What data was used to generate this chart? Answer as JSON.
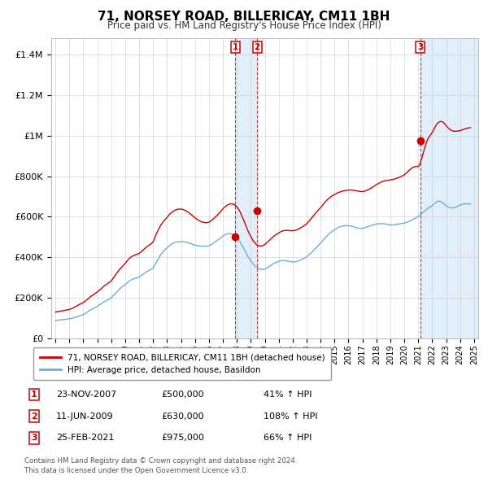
{
  "title": "71, NORSEY ROAD, BILLERICAY, CM11 1BH",
  "subtitle": "Price paid vs. HM Land Registry's House Price Index (HPI)",
  "ylabel_ticks": [
    "£0",
    "£200K",
    "£400K",
    "£600K",
    "£800K",
    "£1M",
    "£1.2M",
    "£1.4M"
  ],
  "ytick_values": [
    0,
    200000,
    400000,
    600000,
    800000,
    1000000,
    1200000,
    1400000
  ],
  "ylim": [
    0,
    1480000
  ],
  "xlim_start": 1994.7,
  "xlim_end": 2025.3,
  "sale_color": "#cc0000",
  "hpi_color": "#6baed6",
  "shade_color": "#d0e4f5",
  "legend_sale_label": "71, NORSEY ROAD, BILLERICAY, CM11 1BH (detached house)",
  "legend_hpi_label": "HPI: Average price, detached house, Basildon",
  "sales": [
    {
      "num": 1,
      "date_label": "23-NOV-2007",
      "x": 2007.9,
      "price": 500000,
      "pct": "41%",
      "arrow": "↑"
    },
    {
      "num": 2,
      "date_label": "11-JUN-2009",
      "x": 2009.45,
      "price": 630000,
      "pct": "108%",
      "arrow": "↑"
    },
    {
      "num": 3,
      "date_label": "25-FEB-2021",
      "x": 2021.15,
      "price": 975000,
      "pct": "66%",
      "arrow": "↑"
    }
  ],
  "footer_line1": "Contains HM Land Registry data © Crown copyright and database right 2024.",
  "footer_line2": "This data is licensed under the Open Government Licence v3.0.",
  "hpi_x": [
    1995.0,
    1995.083,
    1995.167,
    1995.25,
    1995.333,
    1995.417,
    1995.5,
    1995.583,
    1995.667,
    1995.75,
    1995.833,
    1995.917,
    1996.0,
    1996.083,
    1996.167,
    1996.25,
    1996.333,
    1996.417,
    1996.5,
    1996.583,
    1996.667,
    1996.75,
    1996.833,
    1996.917,
    1997.0,
    1997.083,
    1997.167,
    1997.25,
    1997.333,
    1997.417,
    1997.5,
    1997.583,
    1997.667,
    1997.75,
    1997.833,
    1997.917,
    1998.0,
    1998.083,
    1998.167,
    1998.25,
    1998.333,
    1998.417,
    1998.5,
    1998.583,
    1998.667,
    1998.75,
    1998.833,
    1998.917,
    1999.0,
    1999.083,
    1999.167,
    1999.25,
    1999.333,
    1999.417,
    1999.5,
    1999.583,
    1999.667,
    1999.75,
    1999.833,
    1999.917,
    2000.0,
    2000.083,
    2000.167,
    2000.25,
    2000.333,
    2000.417,
    2000.5,
    2000.583,
    2000.667,
    2000.75,
    2000.833,
    2000.917,
    2001.0,
    2001.083,
    2001.167,
    2001.25,
    2001.333,
    2001.417,
    2001.5,
    2001.583,
    2001.667,
    2001.75,
    2001.833,
    2001.917,
    2002.0,
    2002.083,
    2002.167,
    2002.25,
    2002.333,
    2002.417,
    2002.5,
    2002.583,
    2002.667,
    2002.75,
    2002.833,
    2002.917,
    2003.0,
    2003.083,
    2003.167,
    2003.25,
    2003.333,
    2003.417,
    2003.5,
    2003.583,
    2003.667,
    2003.75,
    2003.833,
    2003.917,
    2004.0,
    2004.083,
    2004.167,
    2004.25,
    2004.333,
    2004.417,
    2004.5,
    2004.583,
    2004.667,
    2004.75,
    2004.833,
    2004.917,
    2005.0,
    2005.083,
    2005.167,
    2005.25,
    2005.333,
    2005.417,
    2005.5,
    2005.583,
    2005.667,
    2005.75,
    2005.833,
    2005.917,
    2006.0,
    2006.083,
    2006.167,
    2006.25,
    2006.333,
    2006.417,
    2006.5,
    2006.583,
    2006.667,
    2006.75,
    2006.833,
    2006.917,
    2007.0,
    2007.083,
    2007.167,
    2007.25,
    2007.333,
    2007.417,
    2007.5,
    2007.583,
    2007.667,
    2007.75,
    2007.833,
    2007.917,
    2008.0,
    2008.083,
    2008.167,
    2008.25,
    2008.333,
    2008.417,
    2008.5,
    2008.583,
    2008.667,
    2008.75,
    2008.833,
    2008.917,
    2009.0,
    2009.083,
    2009.167,
    2009.25,
    2009.333,
    2009.417,
    2009.5,
    2009.583,
    2009.667,
    2009.75,
    2009.833,
    2009.917,
    2010.0,
    2010.083,
    2010.167,
    2010.25,
    2010.333,
    2010.417,
    2010.5,
    2010.583,
    2010.667,
    2010.75,
    2010.833,
    2010.917,
    2011.0,
    2011.083,
    2011.167,
    2011.25,
    2011.333,
    2011.417,
    2011.5,
    2011.583,
    2011.667,
    2011.75,
    2011.833,
    2011.917,
    2012.0,
    2012.083,
    2012.167,
    2012.25,
    2012.333,
    2012.417,
    2012.5,
    2012.583,
    2012.667,
    2012.75,
    2012.833,
    2012.917,
    2013.0,
    2013.083,
    2013.167,
    2013.25,
    2013.333,
    2013.417,
    2013.5,
    2013.583,
    2013.667,
    2013.75,
    2013.833,
    2013.917,
    2014.0,
    2014.083,
    2014.167,
    2014.25,
    2014.333,
    2014.417,
    2014.5,
    2014.583,
    2014.667,
    2014.75,
    2014.833,
    2014.917,
    2015.0,
    2015.083,
    2015.167,
    2015.25,
    2015.333,
    2015.417,
    2015.5,
    2015.583,
    2015.667,
    2015.75,
    2015.833,
    2015.917,
    2016.0,
    2016.083,
    2016.167,
    2016.25,
    2016.333,
    2016.417,
    2016.5,
    2016.583,
    2016.667,
    2016.75,
    2016.833,
    2016.917,
    2017.0,
    2017.083,
    2017.167,
    2017.25,
    2017.333,
    2017.417,
    2017.5,
    2017.583,
    2017.667,
    2017.75,
    2017.833,
    2017.917,
    2018.0,
    2018.083,
    2018.167,
    2018.25,
    2018.333,
    2018.417,
    2018.5,
    2018.583,
    2018.667,
    2018.75,
    2018.833,
    2018.917,
    2019.0,
    2019.083,
    2019.167,
    2019.25,
    2019.333,
    2019.417,
    2019.5,
    2019.583,
    2019.667,
    2019.75,
    2019.833,
    2019.917,
    2020.0,
    2020.083,
    2020.167,
    2020.25,
    2020.333,
    2020.417,
    2020.5,
    2020.583,
    2020.667,
    2020.75,
    2020.833,
    2020.917,
    2021.0,
    2021.083,
    2021.167,
    2021.25,
    2021.333,
    2021.417,
    2021.5,
    2021.583,
    2021.667,
    2021.75,
    2021.833,
    2021.917,
    2022.0,
    2022.083,
    2022.167,
    2022.25,
    2022.333,
    2022.417,
    2022.5,
    2022.583,
    2022.667,
    2022.75,
    2022.833,
    2022.917,
    2023.0,
    2023.083,
    2023.167,
    2023.25,
    2023.333,
    2023.417,
    2023.5,
    2023.583,
    2023.667,
    2023.75,
    2023.833,
    2023.917,
    2024.0,
    2024.083,
    2024.167,
    2024.25,
    2024.333,
    2024.417,
    2024.5,
    2024.583,
    2024.667,
    2024.75
  ],
  "hpi_y": [
    88000,
    89000,
    90000,
    90500,
    91000,
    91500,
    92000,
    93000,
    93500,
    94000,
    95000,
    96000,
    97000,
    98000,
    99000,
    100500,
    102000,
    104000,
    106000,
    108000,
    110000,
    112000,
    114000,
    116000,
    118000,
    121000,
    124000,
    128000,
    132000,
    136000,
    140000,
    143000,
    146000,
    149000,
    152000,
    155000,
    158000,
    162000,
    166000,
    170000,
    174000,
    178000,
    181000,
    184000,
    187000,
    190000,
    193000,
    196000,
    200000,
    206000,
    212000,
    218000,
    224000,
    230000,
    236000,
    242000,
    247000,
    252000,
    257000,
    261000,
    265000,
    270000,
    275000,
    280000,
    285000,
    288000,
    291000,
    293000,
    295000,
    297000,
    299000,
    301000,
    303000,
    307000,
    311000,
    315000,
    319000,
    323000,
    327000,
    331000,
    334000,
    337000,
    340000,
    343000,
    348000,
    358000,
    368000,
    378000,
    388000,
    398000,
    408000,
    416000,
    424000,
    430000,
    436000,
    441000,
    446000,
    452000,
    457000,
    462000,
    466000,
    469000,
    472000,
    474000,
    475000,
    476000,
    477000,
    477000,
    477000,
    477000,
    477000,
    476000,
    475000,
    474000,
    472000,
    470000,
    468000,
    466000,
    464000,
    462000,
    460000,
    459000,
    458000,
    457000,
    456000,
    455000,
    455000,
    455000,
    455000,
    455000,
    455000,
    456000,
    457000,
    460000,
    463000,
    467000,
    471000,
    475000,
    479000,
    483000,
    487000,
    491000,
    495000,
    500000,
    505000,
    509000,
    512000,
    514000,
    516000,
    517000,
    517000,
    516000,
    514000,
    511000,
    507000,
    503000,
    498000,
    491000,
    483000,
    474000,
    464000,
    454000,
    443000,
    432000,
    421000,
    410000,
    400000,
    391000,
    383000,
    375000,
    368000,
    362000,
    356000,
    351000,
    347000,
    344000,
    342000,
    341000,
    340000,
    340000,
    341000,
    344000,
    347000,
    351000,
    355000,
    359000,
    363000,
    367000,
    370000,
    373000,
    376000,
    378000,
    380000,
    382000,
    383000,
    384000,
    384000,
    384000,
    383000,
    382000,
    381000,
    380000,
    379000,
    378000,
    377000,
    377000,
    378000,
    379000,
    381000,
    383000,
    385000,
    387000,
    390000,
    393000,
    396000,
    399000,
    402000,
    407000,
    412000,
    417000,
    422000,
    428000,
    434000,
    440000,
    446000,
    452000,
    458000,
    464000,
    470000,
    477000,
    484000,
    490000,
    496000,
    502000,
    508000,
    514000,
    519000,
    524000,
    528000,
    532000,
    536000,
    540000,
    543000,
    546000,
    549000,
    551000,
    553000,
    554000,
    555000,
    556000,
    556000,
    556000,
    556000,
    555000,
    554000,
    553000,
    552000,
    550000,
    548000,
    546000,
    545000,
    544000,
    543000,
    543000,
    543000,
    544000,
    546000,
    548000,
    550000,
    552000,
    554000,
    556000,
    558000,
    560000,
    562000,
    563000,
    564000,
    565000,
    566000,
    566000,
    566000,
    566000,
    566000,
    565000,
    564000,
    563000,
    562000,
    561000,
    560000,
    560000,
    560000,
    560000,
    561000,
    562000,
    563000,
    564000,
    565000,
    566000,
    567000,
    568000,
    569000,
    571000,
    573000,
    575000,
    577000,
    580000,
    583000,
    586000,
    589000,
    592000,
    595000,
    598000,
    601000,
    606000,
    611000,
    616000,
    621000,
    626000,
    631000,
    636000,
    641000,
    645000,
    648000,
    651000,
    655000,
    660000,
    665000,
    670000,
    674000,
    676000,
    677000,
    676000,
    673000,
    669000,
    664000,
    659000,
    654000,
    650000,
    647000,
    645000,
    644000,
    644000,
    644000,
    645000,
    647000,
    649000,
    652000,
    655000,
    658000,
    660000,
    662000,
    663000,
    664000,
    664000,
    664000,
    663000,
    663000,
    663000
  ],
  "sale_x": [
    1995.0,
    1995.083,
    1995.167,
    1995.25,
    1995.333,
    1995.417,
    1995.5,
    1995.583,
    1995.667,
    1995.75,
    1995.833,
    1995.917,
    1996.0,
    1996.083,
    1996.167,
    1996.25,
    1996.333,
    1996.417,
    1996.5,
    1996.583,
    1996.667,
    1996.75,
    1996.833,
    1996.917,
    1997.0,
    1997.083,
    1997.167,
    1997.25,
    1997.333,
    1997.417,
    1997.5,
    1997.583,
    1997.667,
    1997.75,
    1997.833,
    1997.917,
    1998.0,
    1998.083,
    1998.167,
    1998.25,
    1998.333,
    1998.417,
    1998.5,
    1998.583,
    1998.667,
    1998.75,
    1998.833,
    1998.917,
    1999.0,
    1999.083,
    1999.167,
    1999.25,
    1999.333,
    1999.417,
    1999.5,
    1999.583,
    1999.667,
    1999.75,
    1999.833,
    1999.917,
    2000.0,
    2000.083,
    2000.167,
    2000.25,
    2000.333,
    2000.417,
    2000.5,
    2000.583,
    2000.667,
    2000.75,
    2000.833,
    2000.917,
    2001.0,
    2001.083,
    2001.167,
    2001.25,
    2001.333,
    2001.417,
    2001.5,
    2001.583,
    2001.667,
    2001.75,
    2001.833,
    2001.917,
    2002.0,
    2002.083,
    2002.167,
    2002.25,
    2002.333,
    2002.417,
    2002.5,
    2002.583,
    2002.667,
    2002.75,
    2002.833,
    2002.917,
    2003.0,
    2003.083,
    2003.167,
    2003.25,
    2003.333,
    2003.417,
    2003.5,
    2003.583,
    2003.667,
    2003.75,
    2003.833,
    2003.917,
    2004.0,
    2004.083,
    2004.167,
    2004.25,
    2004.333,
    2004.417,
    2004.5,
    2004.583,
    2004.667,
    2004.75,
    2004.833,
    2004.917,
    2005.0,
    2005.083,
    2005.167,
    2005.25,
    2005.333,
    2005.417,
    2005.5,
    2005.583,
    2005.667,
    2005.75,
    2005.833,
    2005.917,
    2006.0,
    2006.083,
    2006.167,
    2006.25,
    2006.333,
    2006.417,
    2006.5,
    2006.583,
    2006.667,
    2006.75,
    2006.833,
    2006.917,
    2007.0,
    2007.083,
    2007.167,
    2007.25,
    2007.333,
    2007.417,
    2007.5,
    2007.583,
    2007.667,
    2007.75,
    2007.833,
    2007.917,
    2008.0,
    2008.083,
    2008.167,
    2008.25,
    2008.333,
    2008.417,
    2008.5,
    2008.583,
    2008.667,
    2008.75,
    2008.833,
    2008.917,
    2009.0,
    2009.083,
    2009.167,
    2009.25,
    2009.333,
    2009.417,
    2009.5,
    2009.583,
    2009.667,
    2009.75,
    2009.833,
    2009.917,
    2010.0,
    2010.083,
    2010.167,
    2010.25,
    2010.333,
    2010.417,
    2010.5,
    2010.583,
    2010.667,
    2010.75,
    2010.833,
    2010.917,
    2011.0,
    2011.083,
    2011.167,
    2011.25,
    2011.333,
    2011.417,
    2011.5,
    2011.583,
    2011.667,
    2011.75,
    2011.833,
    2011.917,
    2012.0,
    2012.083,
    2012.167,
    2012.25,
    2012.333,
    2012.417,
    2012.5,
    2012.583,
    2012.667,
    2012.75,
    2012.833,
    2012.917,
    2013.0,
    2013.083,
    2013.167,
    2013.25,
    2013.333,
    2013.417,
    2013.5,
    2013.583,
    2013.667,
    2013.75,
    2013.833,
    2013.917,
    2014.0,
    2014.083,
    2014.167,
    2014.25,
    2014.333,
    2014.417,
    2014.5,
    2014.583,
    2014.667,
    2014.75,
    2014.833,
    2014.917,
    2015.0,
    2015.083,
    2015.167,
    2015.25,
    2015.333,
    2015.417,
    2015.5,
    2015.583,
    2015.667,
    2015.75,
    2015.833,
    2015.917,
    2016.0,
    2016.083,
    2016.167,
    2016.25,
    2016.333,
    2016.417,
    2016.5,
    2016.583,
    2016.667,
    2016.75,
    2016.833,
    2016.917,
    2017.0,
    2017.083,
    2017.167,
    2017.25,
    2017.333,
    2017.417,
    2017.5,
    2017.583,
    2017.667,
    2017.75,
    2017.833,
    2017.917,
    2018.0,
    2018.083,
    2018.167,
    2018.25,
    2018.333,
    2018.417,
    2018.5,
    2018.583,
    2018.667,
    2018.75,
    2018.833,
    2018.917,
    2019.0,
    2019.083,
    2019.167,
    2019.25,
    2019.333,
    2019.417,
    2019.5,
    2019.583,
    2019.667,
    2019.75,
    2019.833,
    2019.917,
    2020.0,
    2020.083,
    2020.167,
    2020.25,
    2020.333,
    2020.417,
    2020.5,
    2020.583,
    2020.667,
    2020.75,
    2020.833,
    2020.917,
    2021.0,
    2021.083,
    2021.167,
    2021.25,
    2021.333,
    2021.417,
    2021.5,
    2021.583,
    2021.667,
    2021.75,
    2021.833,
    2021.917,
    2022.0,
    2022.083,
    2022.167,
    2022.25,
    2022.333,
    2022.417,
    2022.5,
    2022.583,
    2022.667,
    2022.75,
    2022.833,
    2022.917,
    2023.0,
    2023.083,
    2023.167,
    2023.25,
    2023.333,
    2023.417,
    2023.5,
    2023.583,
    2023.667,
    2023.75,
    2023.833,
    2023.917,
    2024.0,
    2024.083,
    2024.167,
    2024.25,
    2024.333,
    2024.417,
    2024.5,
    2024.583,
    2024.667,
    2024.75
  ],
  "sale_y": [
    130000,
    131000,
    132000,
    133000,
    134000,
    135000,
    136000,
    137000,
    138000,
    139000,
    140000,
    141500,
    143000,
    145000,
    147000,
    150000,
    153000,
    156000,
    159000,
    162000,
    165000,
    168000,
    171000,
    174000,
    177000,
    181000,
    185000,
    190000,
    195000,
    200000,
    205000,
    209000,
    213000,
    217000,
    221000,
    225000,
    229000,
    234000,
    239000,
    244000,
    249000,
    254000,
    259000,
    263000,
    267000,
    271000,
    275000,
    279000,
    284000,
    292000,
    300000,
    308000,
    316000,
    324000,
    332000,
    339000,
    346000,
    352000,
    358000,
    364000,
    370000,
    377000,
    384000,
    391000,
    397000,
    401000,
    405000,
    408000,
    411000,
    413000,
    415000,
    417000,
    419000,
    424000,
    429000,
    434000,
    439000,
    444000,
    449000,
    454000,
    458000,
    462000,
    466000,
    470000,
    476000,
    490000,
    504000,
    518000,
    530000,
    542000,
    553000,
    562000,
    571000,
    578000,
    585000,
    591000,
    597000,
    604000,
    611000,
    617000,
    622000,
    626000,
    630000,
    633000,
    635000,
    637000,
    638000,
    638000,
    638000,
    637000,
    635000,
    633000,
    630000,
    627000,
    623000,
    619000,
    615000,
    610000,
    605000,
    600000,
    595000,
    591000,
    587000,
    583000,
    580000,
    577000,
    575000,
    573000,
    572000,
    571000,
    571000,
    572000,
    573000,
    577000,
    581000,
    586000,
    591000,
    596000,
    602000,
    607000,
    613000,
    619000,
    625000,
    632000,
    639000,
    645000,
    650000,
    654000,
    658000,
    661000,
    663000,
    664000,
    664000,
    662000,
    659000,
    655000,
    649000,
    642000,
    633000,
    622000,
    609000,
    596000,
    582000,
    567000,
    552000,
    538000,
    525000,
    513000,
    502000,
    492000,
    483000,
    475000,
    468000,
    463000,
    459000,
    457000,
    456000,
    456000,
    457000,
    459000,
    463000,
    468000,
    473000,
    479000,
    484000,
    490000,
    495000,
    500000,
    505000,
    509000,
    513000,
    517000,
    520000,
    524000,
    527000,
    529000,
    531000,
    532000,
    533000,
    533000,
    533000,
    532000,
    532000,
    531000,
    531000,
    532000,
    533000,
    535000,
    537000,
    540000,
    543000,
    546000,
    549000,
    553000,
    557000,
    561000,
    565000,
    571000,
    578000,
    585000,
    592000,
    599000,
    606000,
    613000,
    620000,
    627000,
    633000,
    639000,
    645000,
    652000,
    659000,
    666000,
    673000,
    679000,
    685000,
    690000,
    695000,
    699000,
    703000,
    706000,
    709000,
    713000,
    716000,
    719000,
    721000,
    723000,
    725000,
    727000,
    728000,
    729000,
    730000,
    731000,
    732000,
    732000,
    732000,
    732000,
    731000,
    730000,
    729000,
    728000,
    727000,
    726000,
    725000,
    724000,
    724000,
    725000,
    727000,
    729000,
    731000,
    734000,
    737000,
    740000,
    744000,
    747000,
    751000,
    755000,
    759000,
    762000,
    765000,
    768000,
    771000,
    773000,
    775000,
    777000,
    778000,
    779000,
    780000,
    781000,
    782000,
    783000,
    784000,
    785000,
    787000,
    789000,
    791000,
    793000,
    795000,
    798000,
    801000,
    804000,
    807000,
    812000,
    817000,
    822000,
    828000,
    833000,
    838000,
    842000,
    845000,
    847000,
    848000,
    848000,
    848000,
    856000,
    870000,
    888000,
    908000,
    928000,
    948000,
    966000,
    981000,
    991000,
    999000,
    1007000,
    1016000,
    1026000,
    1037000,
    1048000,
    1057000,
    1063000,
    1068000,
    1070000,
    1070000,
    1068000,
    1063000,
    1057000,
    1050000,
    1043000,
    1037000,
    1032000,
    1028000,
    1025000,
    1023000,
    1022000,
    1022000,
    1022000,
    1023000,
    1024000,
    1025000,
    1027000,
    1029000,
    1031000,
    1033000,
    1035000,
    1037000,
    1038000,
    1039000,
    1040000
  ]
}
